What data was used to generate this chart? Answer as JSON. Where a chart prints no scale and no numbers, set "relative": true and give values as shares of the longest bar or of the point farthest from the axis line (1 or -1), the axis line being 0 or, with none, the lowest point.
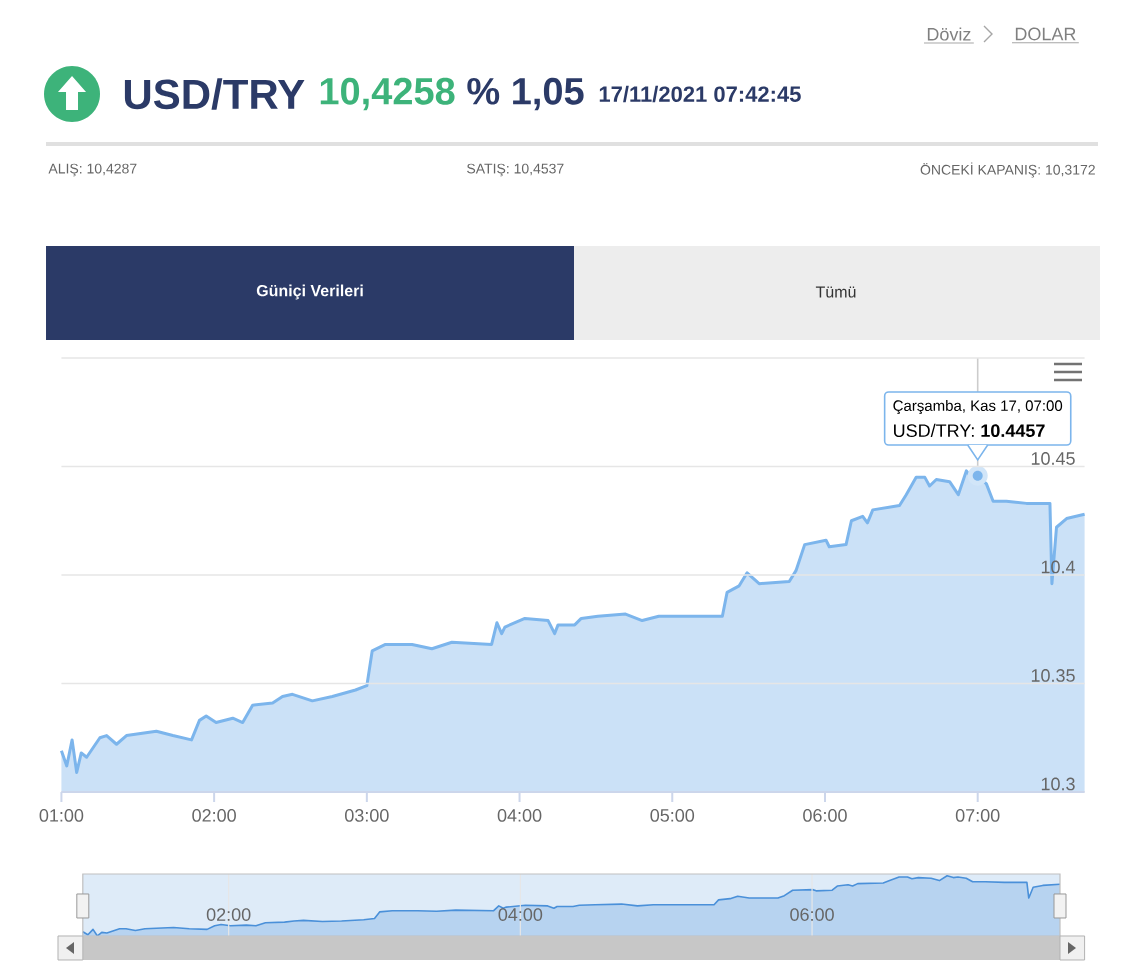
{
  "chart_data": [
    {
      "type": "area",
      "title": "USD/TRY",
      "x": [
        1.0,
        1.035,
        1.07,
        1.1,
        1.13,
        1.165,
        1.252,
        1.296,
        1.361,
        1.426,
        1.622,
        1.73,
        1.852,
        1.904,
        1.948,
        2.013,
        2.122,
        2.187,
        2.252,
        2.383,
        2.448,
        2.513,
        2.643,
        2.774,
        2.926,
        3.0,
        3.035,
        3.122,
        3.296,
        3.426,
        3.557,
        3.817,
        3.852,
        3.883,
        3.904,
        4.035,
        4.187,
        4.23,
        4.252,
        4.361,
        4.404,
        4.513,
        4.694,
        4.803,
        4.912,
        5.175,
        5.328,
        5.359,
        5.438,
        5.49,
        5.569,
        5.766,
        5.81,
        5.867,
        6.007,
        6.028,
        6.138,
        6.173,
        6.247,
        6.278,
        6.313,
        6.488,
        6.532,
        6.597,
        6.654,
        6.685,
        6.729,
        6.816,
        6.873,
        6.926,
        6.969,
        7.0,
        7.057,
        7.101,
        7.188,
        7.319,
        7.473,
        7.486,
        7.516,
        7.582,
        7.7
      ],
      "values": [
        10.319,
        10.312,
        10.324,
        10.309,
        10.318,
        10.316,
        10.325,
        10.326,
        10.322,
        10.326,
        10.328,
        10.326,
        10.324,
        10.333,
        10.335,
        10.332,
        10.334,
        10.332,
        10.34,
        10.341,
        10.344,
        10.345,
        10.342,
        10.344,
        10.347,
        10.349,
        10.365,
        10.368,
        10.368,
        10.366,
        10.369,
        10.368,
        10.378,
        10.373,
        10.376,
        10.38,
        10.379,
        10.373,
        10.377,
        10.377,
        10.38,
        10.381,
        10.382,
        10.379,
        10.381,
        10.381,
        10.381,
        10.392,
        10.395,
        10.401,
        10.396,
        10.397,
        10.402,
        10.414,
        10.416,
        10.413,
        10.414,
        10.425,
        10.427,
        10.424,
        10.43,
        10.432,
        10.437,
        10.445,
        10.445,
        10.441,
        10.444,
        10.443,
        10.437,
        10.448,
        10.444,
        10.4457,
        10.442,
        10.434,
        10.434,
        10.433,
        10.433,
        10.396,
        10.422,
        10.426,
        10.428
      ],
      "color": "#7cb5ec",
      "xlim": [
        1,
        7.7
      ],
      "ylim": [
        10.3,
        10.5
      ],
      "xticks": [
        {
          "value": 1,
          "label": "01:00"
        },
        {
          "value": 2,
          "label": "02:00"
        },
        {
          "value": 3,
          "label": "03:00"
        },
        {
          "value": 4,
          "label": "04:00"
        },
        {
          "value": 5,
          "label": "05:00"
        },
        {
          "value": 6,
          "label": "06:00"
        },
        {
          "value": 7,
          "label": "07:00"
        }
      ],
      "yticks": [
        10.3,
        10.35,
        10.4,
        10.45,
        {
          "value": 10.5,
          "label": null
        }
      ],
      "grid": "y",
      "ref_lines": [
        {
          "axis": "x",
          "value": 7,
          "color": "#cccccc"
        }
      ],
      "annotations": [
        "Döviz",
        "DOLAR",
        "10,4258",
        "% 1,05",
        "17/11/2021 07:42:45",
        "ALIŞ: 10,4287",
        "SATIŞ: 10,4537",
        "ÖNCEKİ KAPANIŞ: 10,3172",
        "Güniçi Verileri",
        "Tümü",
        "Çarşamba, Kas 17, 07:00",
        {
          "text": "USD/TRY: **10.4457**",
          "x": 7,
          "y": 10.4457
        }
      ]
    },
    {
      "type": "area",
      "x": [
        1.0,
        1.035,
        1.07,
        1.1,
        1.13,
        1.165,
        1.252,
        1.296,
        1.361,
        1.426,
        1.622,
        1.73,
        1.852,
        1.904,
        1.948,
        2.013,
        2.122,
        2.187,
        2.252,
        2.383,
        2.448,
        2.513,
        2.643,
        2.774,
        2.926,
        3.0,
        3.035,
        3.122,
        3.296,
        3.426,
        3.557,
        3.817,
        3.852,
        3.883,
        3.904,
        4.035,
        4.187,
        4.23,
        4.252,
        4.361,
        4.404,
        4.513,
        4.694,
        4.803,
        4.912,
        5.175,
        5.328,
        5.359,
        5.438,
        5.49,
        5.569,
        5.766,
        5.81,
        5.867,
        6.007,
        6.028,
        6.138,
        6.173,
        6.247,
        6.278,
        6.313,
        6.488,
        6.532,
        6.597,
        6.654,
        6.685,
        6.729,
        6.816,
        6.873,
        6.926,
        6.969,
        7.0,
        7.057,
        7.101,
        7.188,
        7.319,
        7.473,
        7.486,
        7.516,
        7.582,
        7.7
      ],
      "values": [
        0.07,
        0.02,
        0.11,
        0,
        0.06,
        0.05,
        0.12,
        0.12,
        0.09,
        0.12,
        0.14,
        0.12,
        0.11,
        0.17,
        0.19,
        0.17,
        0.18,
        0.17,
        0.22,
        0.23,
        0.25,
        0.26,
        0.24,
        0.25,
        0.27,
        0.29,
        0.4,
        0.42,
        0.42,
        0.41,
        0.43,
        0.42,
        0.5,
        0.46,
        0.48,
        0.51,
        0.5,
        0.46,
        0.49,
        0.49,
        0.51,
        0.52,
        0.53,
        0.5,
        0.52,
        0.52,
        0.52,
        0.6,
        0.62,
        0.66,
        0.63,
        0.63,
        0.67,
        0.76,
        0.77,
        0.75,
        0.76,
        0.83,
        0.85,
        0.83,
        0.87,
        0.88,
        0.92,
        0.98,
        0.98,
        0.95,
        0.97,
        0.96,
        0.92,
        1,
        0.97,
        0.98,
        0.96,
        0.9,
        0.9,
        0.89,
        0.89,
        0.63,
        0.81,
        0.84,
        0.86
      ],
      "color": "#4a90d9",
      "relative": true,
      "xlim": [
        1,
        7.7
      ],
      "xticks": [
        {
          "value": 2,
          "label": "02:00"
        },
        {
          "value": 4,
          "label": "04:00"
        },
        {
          "value": 6,
          "label": "06:00"
        }
      ],
      "grid": "x",
      "tick_labels": "x"
    }
  ]
}
